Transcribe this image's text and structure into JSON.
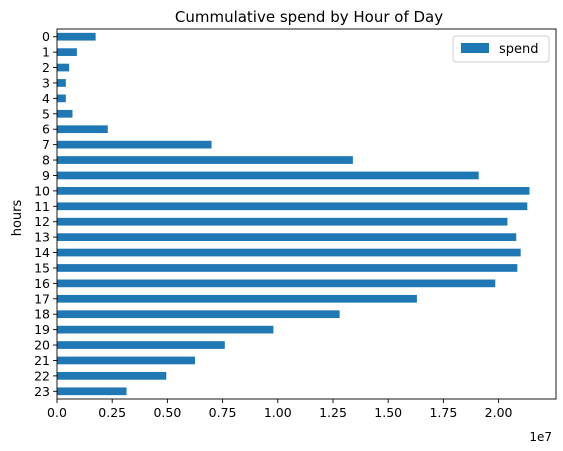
{
  "chart_data": {
    "type": "bar",
    "orientation": "horizontal",
    "title": "Cummulative spend by Hour of Day",
    "xlabel": "",
    "ylabel": "hours",
    "x_offset_label": "1e7",
    "xlim": [
      0,
      22600000
    ],
    "x_ticks": [
      0,
      2500000,
      5000000,
      7500000,
      10000000,
      12500000,
      15000000,
      17500000,
      20000000
    ],
    "x_tick_labels": [
      "0.0",
      "0.25",
      "0.50",
      "0.75",
      "1.00",
      "1.25",
      "1.50",
      "1.75",
      "2.00"
    ],
    "categories": [
      "0",
      "1",
      "2",
      "3",
      "4",
      "5",
      "6",
      "7",
      "8",
      "9",
      "10",
      "11",
      "12",
      "13",
      "14",
      "15",
      "16",
      "17",
      "18",
      "19",
      "20",
      "21",
      "22",
      "23"
    ],
    "series": [
      {
        "name": "spend",
        "color": "#1f77b4",
        "values": [
          1750000,
          900000,
          550000,
          400000,
          400000,
          700000,
          2300000,
          7000000,
          13400000,
          19100000,
          21400000,
          21300000,
          20400000,
          20800000,
          21000000,
          20850000,
          19850000,
          16300000,
          12800000,
          9800000,
          7600000,
          6250000,
          4950000,
          3150000
        ]
      }
    ],
    "legend_position": "upper right",
    "grid": false
  }
}
